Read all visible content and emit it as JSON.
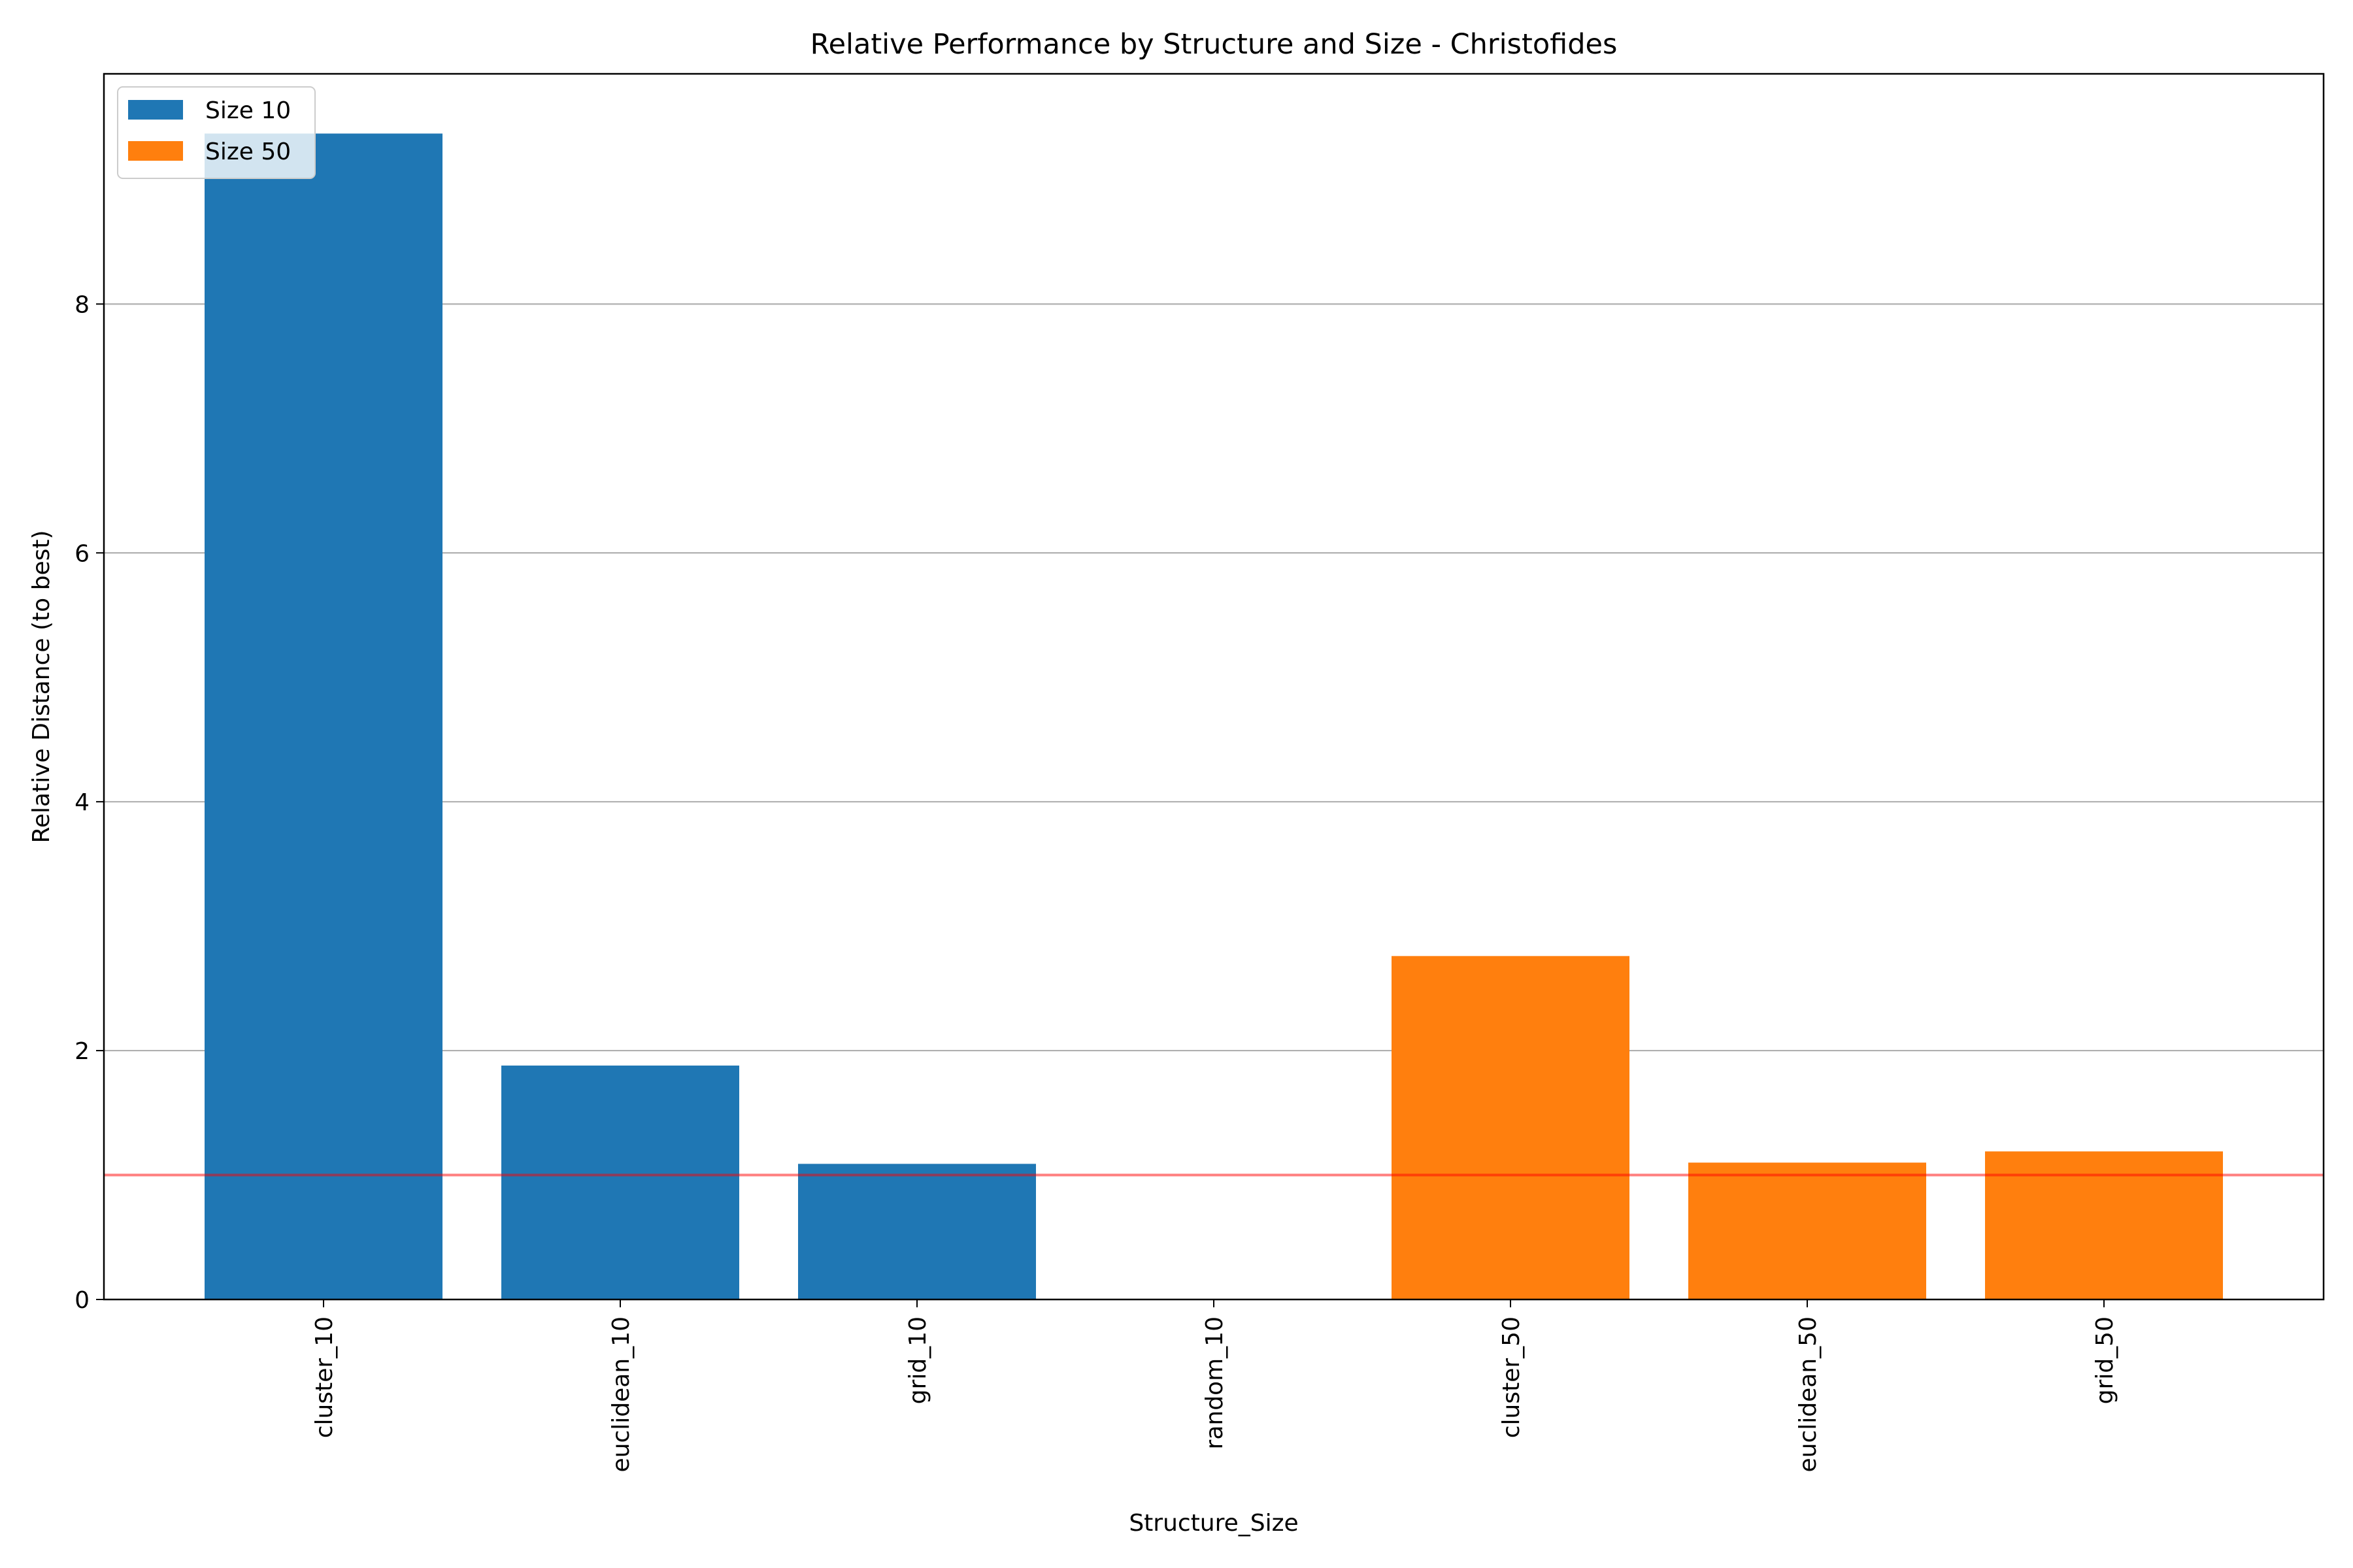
{
  "chart_data": {
    "type": "bar",
    "title": "Relative Performance by Structure and Size - Christofides",
    "xlabel": "Structure_Size",
    "ylabel": "Relative Distance (to best)",
    "categories": [
      "cluster_10",
      "euclidean_10",
      "grid_10",
      "random_10",
      "cluster_50",
      "euclidean_50",
      "grid_50"
    ],
    "series": [
      {
        "name": "Size 10",
        "color": "#1f77b4",
        "values": [
          9.37,
          1.88,
          1.09,
          0.0,
          null,
          null,
          null
        ]
      },
      {
        "name": "Size 50",
        "color": "#ff7f0e",
        "values": [
          null,
          null,
          null,
          null,
          2.76,
          1.1,
          1.19
        ]
      }
    ],
    "yticks": [
      0,
      2,
      4,
      6,
      8
    ],
    "ylim": [
      0,
      9.85
    ],
    "reference_line": {
      "y": 1.0,
      "color": "#ff0000"
    },
    "grid": "horizontal",
    "legend_position": "top-left"
  }
}
